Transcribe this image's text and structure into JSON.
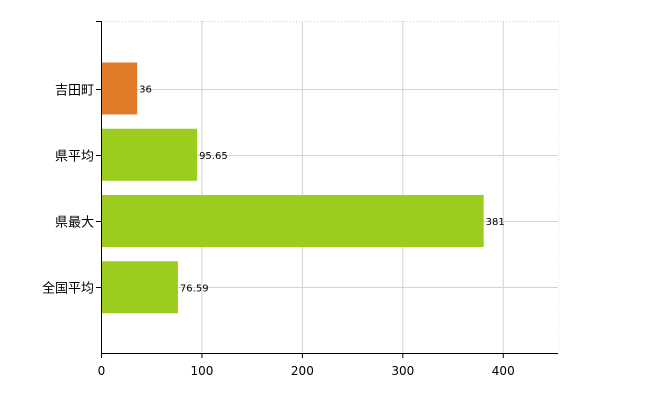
{
  "chart_data": {
    "type": "bar",
    "orientation": "horizontal",
    "categories": [
      "吉田町",
      "県平均",
      "県最大",
      "全国平均"
    ],
    "values": [
      36,
      95.65,
      381,
      76.59
    ],
    "value_labels": [
      "36",
      "95.65",
      "381",
      "76.59"
    ],
    "colors": [
      "#e07b28",
      "#9ccc1e",
      "#9ccc1e",
      "#9ccc1e"
    ],
    "xlim": [
      0,
      455
    ],
    "xticks": [
      0,
      100,
      200,
      300,
      400
    ],
    "grid": true,
    "title": "",
    "xlabel": "",
    "ylabel": ""
  }
}
